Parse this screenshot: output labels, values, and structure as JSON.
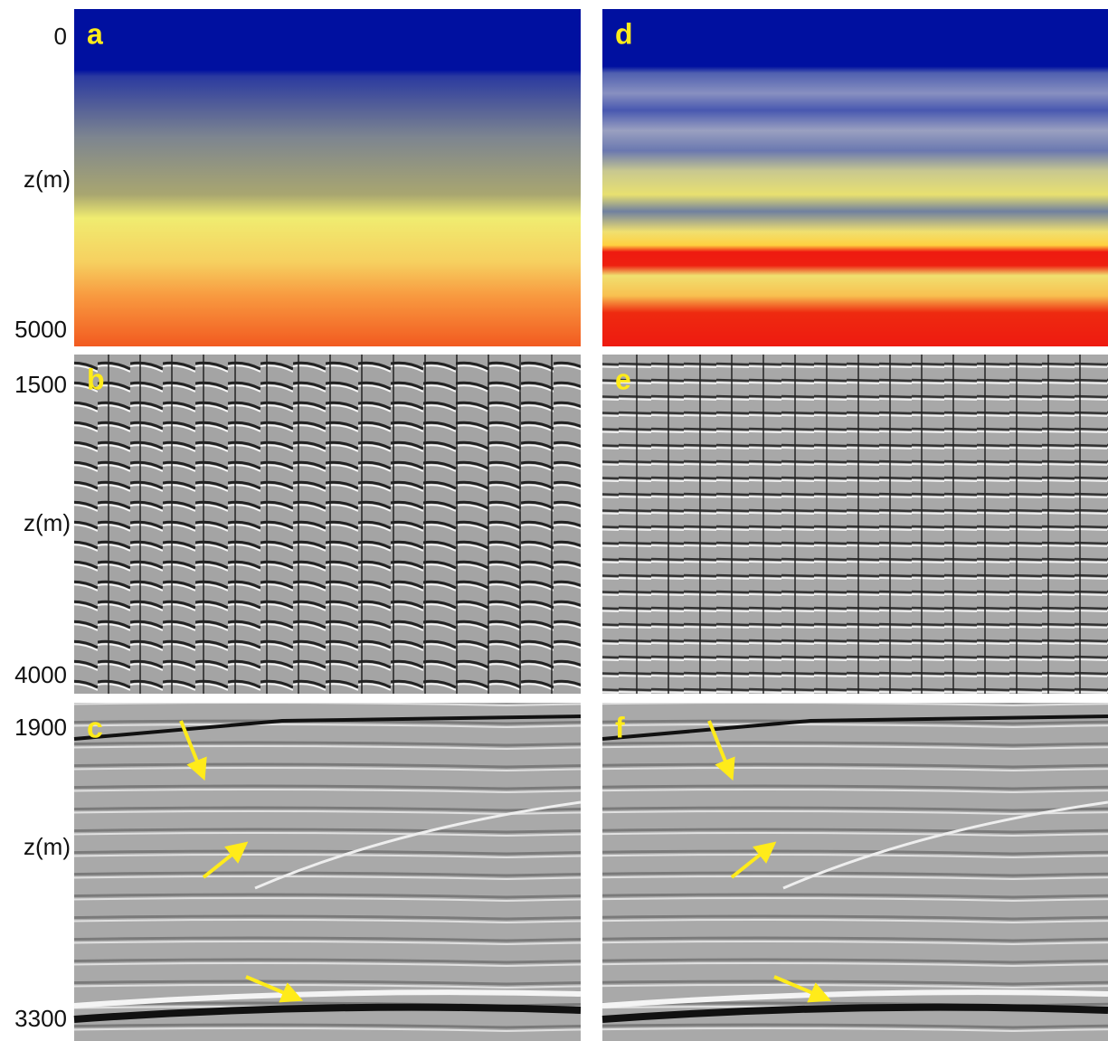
{
  "rows": [
    {
      "ticks": [
        "0",
        "5000"
      ],
      "axis_label": "z(m)",
      "panels": [
        "a",
        "d"
      ]
    },
    {
      "ticks": [
        "1500",
        "4000"
      ],
      "axis_label": "z(m)",
      "panels": [
        "b",
        "e"
      ]
    },
    {
      "ticks": [
        "1900",
        "3300"
      ],
      "axis_label": "z(m)",
      "panels": [
        "c",
        "f"
      ]
    }
  ]
}
